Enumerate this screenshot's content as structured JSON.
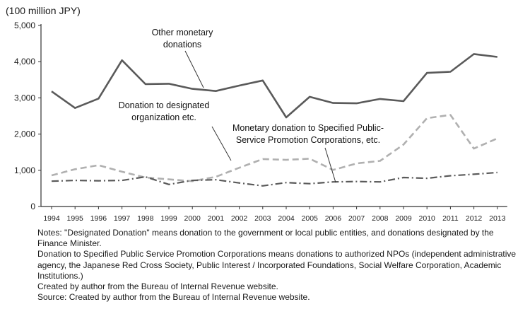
{
  "chart_data": {
    "type": "line",
    "unit_label": "(100 million JPY)",
    "categories": [
      "1994",
      "1995",
      "1996",
      "1997",
      "1998",
      "1999",
      "2000",
      "2001",
      "2002",
      "2003",
      "2004",
      "2005",
      "2006",
      "2007",
      "2008",
      "2009",
      "2010",
      "2011",
      "2012",
      "2013"
    ],
    "y_ticks": [
      "0",
      "1,000",
      "2,000",
      "3,000",
      "4,000",
      "5,000"
    ],
    "ylim": [
      0,
      5000
    ],
    "grid": false,
    "series": [
      {
        "name": "Other monetary donations",
        "style": "solid",
        "color": "#5a5a5a",
        "values": [
          3180,
          2720,
          2980,
          4040,
          3380,
          3390,
          3250,
          3190,
          3340,
          3480,
          2460,
          3030,
          2860,
          2850,
          2970,
          2910,
          3690,
          3720,
          4210,
          4130
        ]
      },
      {
        "name": "Donation to designated organization etc.",
        "style": "dashed",
        "color": "#b0b0b0",
        "values": [
          860,
          1030,
          1140,
          960,
          800,
          750,
          700,
          820,
          1070,
          1310,
          1290,
          1320,
          1010,
          1190,
          1260,
          1710,
          2440,
          2530,
          1600,
          1880
        ]
      },
      {
        "name": "Monetary donation to Specified Public-Service Promotion Corporations, etc.",
        "style": "dashdot",
        "color": "#5a5a5a",
        "values": [
          700,
          720,
          710,
          720,
          820,
          610,
          720,
          740,
          650,
          570,
          660,
          630,
          680,
          690,
          680,
          800,
          780,
          850,
          890,
          940
        ]
      }
    ],
    "annotations": [
      {
        "lines": [
          "Other monetary",
          "donations"
        ]
      },
      {
        "lines": [
          "Donation to designated",
          "organization etc."
        ]
      },
      {
        "lines": [
          "Monetary donation to Specified Public-",
          "Service Promotion Corporations, etc."
        ]
      }
    ]
  },
  "notes": [
    "Notes: \"Designated Donation\" means donation to the government or local public entities, and donations designated by the Finance Minister.",
    "Donation to Specified Public Service Promotion Corporations means donations to authorized NPOs (independent administrative agency, the Japanese Red Cross Society, Public Interest / Incorporated Foundations, Social Welfare Corporation, Academic Institutions.)",
    "Created by author from the Bureau of Internal Revenue website.",
    "Source: Created by author from the Bureau of Internal Revenue website."
  ]
}
